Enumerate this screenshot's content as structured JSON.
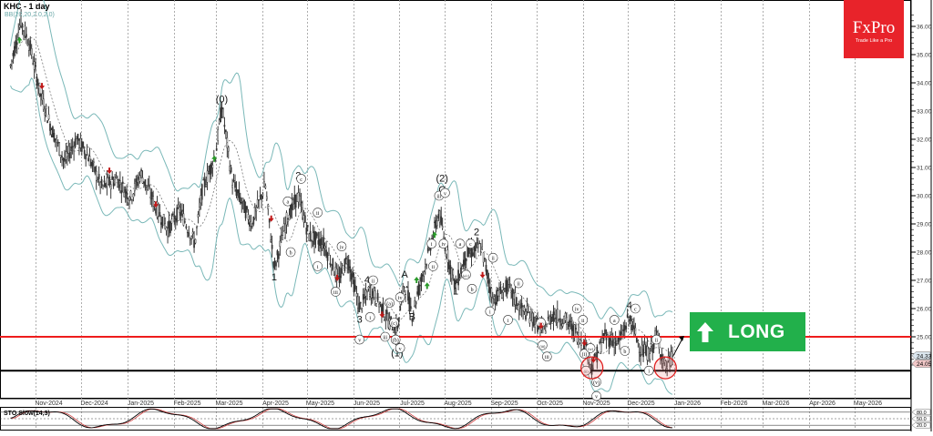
{
  "header": {
    "title": "KHC - 1 day",
    "indicator_label": "BB(20,20,2.0,2.0)"
  },
  "logo": {
    "brand": "FxPro",
    "tagline": "Trade Like a Pro",
    "color": "#e8232a"
  },
  "signal": {
    "label": "LONG",
    "direction": "up",
    "color": "#22b04b"
  },
  "stochastic": {
    "label": "STO Slow(14,3)",
    "levels": [
      "80.0",
      "50.0",
      "20.0"
    ]
  },
  "colors": {
    "resistance_line": "#ee1c1c",
    "support_line": "#000000",
    "bollinger": "#7ab8b8",
    "candle": "#222222",
    "buy_arrow": "#2a9a2a",
    "sell_arrow": "#c01818",
    "stoch_main": "#000000",
    "stoch_signal": "#d04040"
  },
  "chart_data": {
    "type": "candlestick",
    "title": "KHC - 1 day",
    "symbol": "KHC",
    "timeframe": "1 day",
    "indicators": [
      "BB(20,20,2.0,2.0)",
      "STO Slow(14,3)"
    ],
    "x_tick_labels": [
      "Nov-2024",
      "Dec-2024",
      "Jan-2025",
      "Feb-2025",
      "Mar-2025",
      "Apr-2025",
      "May-2025",
      "Jun-2025",
      "Jul-2025",
      "Aug-2025",
      "Sep-2025",
      "Oct-2025",
      "Nov-2025",
      "Dec-2025",
      "Jan-2026",
      "Feb-2026",
      "Mar-2026",
      "Apr-2026",
      "May-2026"
    ],
    "y_tick_labels": [
      "36.00",
      "35.00",
      "34.00",
      "33.00",
      "32.00",
      "31.00",
      "30.00",
      "29.00",
      "28.00",
      "27.00",
      "26.00",
      "25.00"
    ],
    "ylim": [
      23.2,
      36.6
    ],
    "current_price_labels": [
      "24.33",
      "24.05"
    ],
    "horizontal_lines": [
      {
        "name": "resistance",
        "value": 25.0,
        "color": "#ee1c1c"
      },
      {
        "name": "support",
        "value": 23.8,
        "color": "#000000"
      }
    ],
    "close_path": [
      [
        "2024-10-15",
        34.6
      ],
      [
        "2024-10-22",
        36.2
      ],
      [
        "2024-10-28",
        35.3
      ],
      [
        "2024-11-04",
        33.6
      ],
      [
        "2024-11-12",
        32.3
      ],
      [
        "2024-11-20",
        31.2
      ],
      [
        "2024-11-28",
        32.0
      ],
      [
        "2024-12-05",
        31.5
      ],
      [
        "2024-12-15",
        30.3
      ],
      [
        "2024-12-25",
        30.6
      ],
      [
        "2025-01-03",
        29.9
      ],
      [
        "2025-01-10",
        30.8
      ],
      [
        "2025-01-20",
        29.6
      ],
      [
        "2025-01-28",
        28.8
      ],
      [
        "2025-02-05",
        29.5
      ],
      [
        "2025-02-15",
        28.3
      ],
      [
        "2025-02-20",
        30.2
      ],
      [
        "2025-03-01",
        31.5
      ],
      [
        "2025-03-05",
        33.2
      ],
      [
        "2025-03-12",
        30.5
      ],
      [
        "2025-03-25",
        29.0
      ],
      [
        "2025-04-03",
        30.4
      ],
      [
        "2025-04-09",
        27.4
      ],
      [
        "2025-04-18",
        29.3
      ],
      [
        "2025-04-25",
        30.0
      ],
      [
        "2025-05-02",
        28.6
      ],
      [
        "2025-05-12",
        28.3
      ],
      [
        "2025-05-22",
        27.0
      ],
      [
        "2025-05-28",
        27.8
      ],
      [
        "2025-06-05",
        26.0
      ],
      [
        "2025-06-12",
        26.7
      ],
      [
        "2025-06-18",
        26.2
      ],
      [
        "2025-06-25",
        25.5
      ],
      [
        "2025-06-30",
        25.3
      ],
      [
        "2025-07-05",
        26.9
      ],
      [
        "2025-07-10",
        25.8
      ],
      [
        "2025-07-20",
        27.8
      ],
      [
        "2025-07-28",
        29.4
      ],
      [
        "2025-08-02",
        28.0
      ],
      [
        "2025-08-08",
        26.8
      ],
      [
        "2025-08-15",
        27.9
      ],
      [
        "2025-08-25",
        28.2
      ],
      [
        "2025-09-02",
        26.3
      ],
      [
        "2025-09-12",
        26.8
      ],
      [
        "2025-09-20",
        26.0
      ],
      [
        "2025-09-28",
        25.7
      ],
      [
        "2025-10-05",
        25.2
      ],
      [
        "2025-10-12",
        25.8
      ],
      [
        "2025-10-20",
        25.6
      ],
      [
        "2025-10-28",
        25.1
      ],
      [
        "2025-11-04",
        24.5
      ],
      [
        "2025-11-07",
        23.9
      ],
      [
        "2025-11-15",
        25.0
      ],
      [
        "2025-11-25",
        24.8
      ],
      [
        "2025-12-02",
        25.7
      ],
      [
        "2025-12-10",
        24.5
      ],
      [
        "2025-12-16",
        24.4
      ],
      [
        "2025-12-20",
        25.1
      ],
      [
        "2025-12-26",
        23.9
      ],
      [
        "2025-12-31",
        24.3
      ]
    ],
    "projection": {
      "from": 24.3,
      "to": 25.0,
      "note": "arrow pointing up-right"
    },
    "wave_labels": [
      {
        "label": "(0)",
        "x_date": "2025-03-05",
        "price": 33.3
      },
      {
        "label": "1",
        "x_date": "2025-04-09",
        "price": 27.0
      },
      {
        "label": "2",
        "x_date": "2025-04-25",
        "price": 30.6
      },
      {
        "label": "3",
        "x_date": "2025-06-05",
        "price": 25.5
      },
      {
        "label": "4",
        "x_date": "2025-06-10",
        "price": 26.9
      },
      {
        "label": "5",
        "x_date": "2025-06-30",
        "price": 24.7
      },
      {
        "label": "(1)",
        "x_date": "2025-06-30",
        "price": 24.3
      },
      {
        "label": "A",
        "x_date": "2025-07-05",
        "price": 27.1
      },
      {
        "label": "B",
        "x_date": "2025-07-10",
        "price": 25.6
      },
      {
        "label": "C",
        "x_date": "2025-07-30",
        "price": 30.1
      },
      {
        "label": "(2)",
        "x_date": "2025-07-30",
        "price": 30.5
      },
      {
        "label": "1",
        "x_date": "2025-08-08",
        "price": 26.5
      },
      {
        "label": "2",
        "x_date": "2025-08-22",
        "price": 28.6
      },
      {
        "label": "4",
        "x_date": "2025-12-02",
        "price": 26.0
      }
    ],
    "circled_labels": [
      "a",
      "b",
      "c",
      "i",
      "ii",
      "iii",
      "iv",
      "v",
      "(a)",
      "(b)",
      "(c)",
      "(i)",
      "(ii)",
      "(iii)",
      "(iv)",
      "(v)"
    ],
    "highlight_circles": [
      {
        "x_date": "2025-11-07",
        "price": 23.9
      },
      {
        "x_date": "2025-12-26",
        "price": 23.9
      }
    ],
    "stochastic_series": {
      "levels": [
        80,
        50,
        20
      ],
      "description": "oscillating between ~10 and ~95; ending near 20 rising"
    },
    "legend": [],
    "grid": "vertical dashed at month boundaries"
  }
}
